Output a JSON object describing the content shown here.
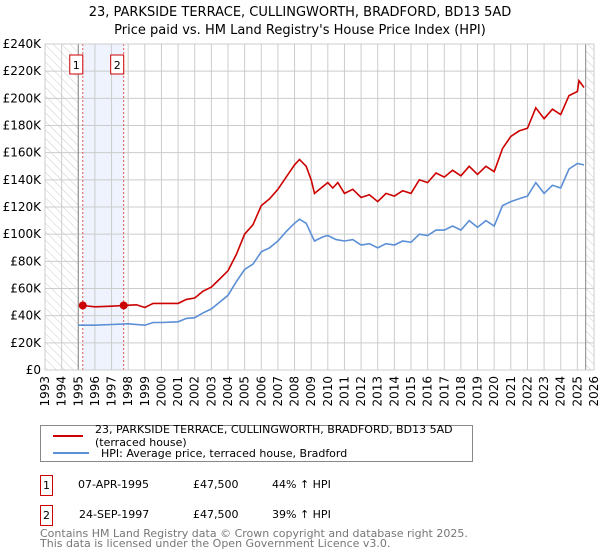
{
  "chart_data": {
    "type": "line",
    "title": "23, PARKSIDE TERRACE, CULLINGWORTH, BRADFORD, BD13 5AD",
    "subtitle": "Price paid vs. HM Land Registry's House Price Index (HPI)",
    "xlabel": "",
    "ylabel": "",
    "xlim": [
      1993,
      2026
    ],
    "ylim": [
      0,
      240000
    ],
    "x_ticks": [
      "1993",
      "1994",
      "1995",
      "1996",
      "1997",
      "1998",
      "1999",
      "2000",
      "2001",
      "2002",
      "2003",
      "2004",
      "2005",
      "2006",
      "2007",
      "2008",
      "2009",
      "2010",
      "2011",
      "2012",
      "2013",
      "2014",
      "2015",
      "2016",
      "2017",
      "2018",
      "2019",
      "2020",
      "2021",
      "2022",
      "2023",
      "2024",
      "2025",
      "2026"
    ],
    "y_ticks": [
      {
        "value": 0,
        "label": "£0"
      },
      {
        "value": 20000,
        "label": "£20K"
      },
      {
        "value": 40000,
        "label": "£40K"
      },
      {
        "value": 60000,
        "label": "£60K"
      },
      {
        "value": 80000,
        "label": "£80K"
      },
      {
        "value": 100000,
        "label": "£100K"
      },
      {
        "value": 120000,
        "label": "£120K"
      },
      {
        "value": 140000,
        "label": "£140K"
      },
      {
        "value": 160000,
        "label": "£160K"
      },
      {
        "value": 180000,
        "label": "£180K"
      },
      {
        "value": 200000,
        "label": "£200K"
      },
      {
        "value": 220000,
        "label": "£220K"
      },
      {
        "value": 240000,
        "label": "£240K"
      }
    ],
    "grid": true,
    "data_range": [
      1995,
      2025.5
    ],
    "series": [
      {
        "name": "23, PARKSIDE TERRACE, CULLINGWORTH, BRADFORD, BD13 5AD (terraced house)",
        "color": "#cc0000",
        "x": [
          1995.27,
          1996,
          1997,
          1997.73,
          1998.5,
          1999,
          1999.5,
          2000,
          2001,
          2001.5,
          2002,
          2002.5,
          2003,
          2003.5,
          2004,
          2004.5,
          2005,
          2005.5,
          2006,
          2006.5,
          2007,
          2007.5,
          2008,
          2008.3,
          2008.7,
          2009,
          2009.2,
          2009.7,
          2010,
          2010.3,
          2010.6,
          2011,
          2011.5,
          2012,
          2012.5,
          2013,
          2013.5,
          2014,
          2014.5,
          2015,
          2015.5,
          2016,
          2016.5,
          2017,
          2017.5,
          2018,
          2018.5,
          2019,
          2019.5,
          2020,
          2020.5,
          2021,
          2021.5,
          2022,
          2022.5,
          2023,
          2023.5,
          2024,
          2024.5,
          2025,
          2025.1,
          2025.4
        ],
        "y": [
          47500,
          46500,
          47000,
          47500,
          48000,
          46000,
          49000,
          49000,
          49000,
          52000,
          53000,
          58000,
          61000,
          67000,
          73000,
          85000,
          100000,
          107000,
          121000,
          126000,
          133000,
          142000,
          151000,
          155000,
          150000,
          140000,
          130000,
          135000,
          138000,
          134000,
          138000,
          130000,
          133000,
          127000,
          129000,
          124000,
          130000,
          128000,
          132000,
          130000,
          140000,
          138000,
          145000,
          142000,
          147000,
          143000,
          150000,
          144000,
          150000,
          146000,
          163000,
          172000,
          176000,
          178000,
          193000,
          185000,
          192000,
          188000,
          202000,
          205000,
          213000,
          208000
        ]
      },
      {
        "name": "HPI: Average price, terraced house, Bradford",
        "color": "#5b8fd6",
        "x": [
          1995,
          1996,
          1997,
          1998,
          1999,
          1999.5,
          2000,
          2001,
          2001.5,
          2002,
          2002.5,
          2003,
          2003.5,
          2004,
          2004.5,
          2005,
          2005.5,
          2006,
          2006.5,
          2007,
          2007.5,
          2008,
          2008.3,
          2008.7,
          2009,
          2009.2,
          2009.7,
          2010,
          2010.5,
          2011,
          2011.5,
          2012,
          2012.5,
          2013,
          2013.5,
          2014,
          2014.5,
          2015,
          2015.5,
          2016,
          2016.5,
          2017,
          2017.5,
          2018,
          2018.5,
          2019,
          2019.5,
          2020,
          2020.5,
          2021,
          2021.5,
          2022,
          2022.5,
          2023,
          2023.5,
          2024,
          2024.5,
          2025,
          2025.4
        ],
        "y": [
          33000,
          33000,
          33500,
          34000,
          33000,
          35000,
          35000,
          35500,
          38000,
          38500,
          42000,
          45000,
          50000,
          55000,
          65000,
          74000,
          78000,
          87000,
          90000,
          95000,
          102000,
          108000,
          111000,
          108000,
          100000,
          95000,
          98000,
          99000,
          96000,
          95000,
          96000,
          92000,
          93000,
          90000,
          93000,
          92000,
          95000,
          94000,
          100000,
          99000,
          103000,
          103000,
          106000,
          103000,
          110000,
          105000,
          110000,
          106000,
          121000,
          124000,
          126000,
          128000,
          138000,
          130000,
          136000,
          134000,
          148000,
          152000,
          151000
        ]
      }
    ],
    "sales": [
      {
        "label": "1",
        "x": 1995.27,
        "price": 47500,
        "date": "07-APR-1995",
        "price_text": "£47,500",
        "hpi": "44% ↑ HPI"
      },
      {
        "label": "2",
        "x": 1997.73,
        "price": 47500,
        "date": "24-SEP-1997",
        "price_text": "£47,500",
        "hpi": "39% ↑ HPI"
      }
    ],
    "legend_placement": "below"
  },
  "footer": {
    "line1": "Contains HM Land Registry data © Crown copyright and database right 2025.",
    "line2": "This data is licensed under the Open Government Licence v3.0."
  }
}
